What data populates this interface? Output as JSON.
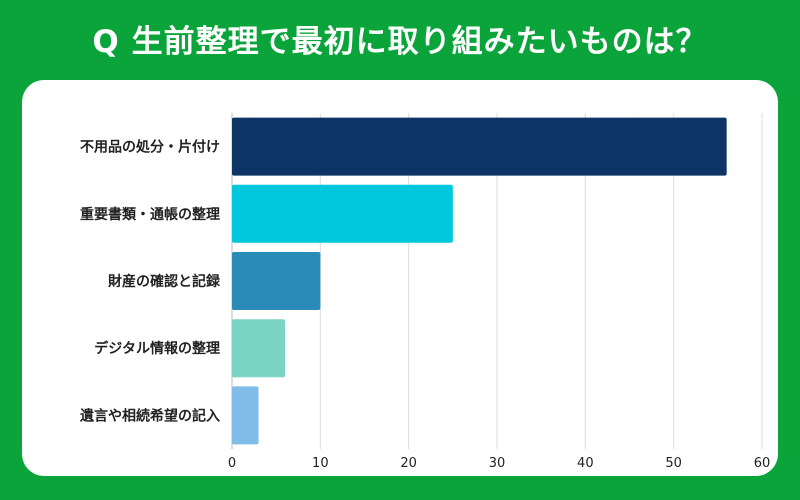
{
  "title": "Q 生前整理で最初に取り組みたいものは？",
  "colors": {
    "background": "#0aa43a",
    "panel": "#ffffff",
    "grid": "#dcdcdc"
  },
  "chart_data": {
    "type": "bar",
    "orientation": "horizontal",
    "categories": [
      "不用品の処分・片付け",
      "重要書類・通帳の整理",
      "財産の確認と記録",
      "デジタル情報の整理",
      "遺言や相続希望の記入"
    ],
    "values": [
      56,
      25,
      10,
      6,
      3
    ],
    "bar_colors": [
      "#0c3464",
      "#00c8dc",
      "#2a8ab8",
      "#7cd4c4",
      "#80bce8"
    ],
    "xlim": [
      0,
      60
    ],
    "xticks": [
      0,
      10,
      20,
      30,
      40,
      50,
      60
    ],
    "xtick_labels": [
      "0",
      "10",
      "20",
      "30",
      "40",
      "50",
      "60"
    ],
    "grid": true
  }
}
